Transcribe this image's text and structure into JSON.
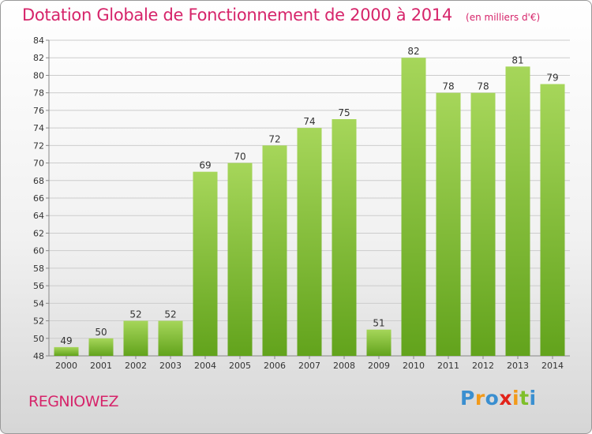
{
  "header": {
    "title": "Dotation Globale de Fonctionnement de 2000 à 2014",
    "subtitle": "(en milliers d'€)"
  },
  "footer": {
    "commune": "REGNIOWEZ",
    "logo_letters": [
      {
        "ch": "P",
        "color": "#3a8fd0"
      },
      {
        "ch": "r",
        "color": "#f29a1a"
      },
      {
        "ch": "o",
        "color": "#3a8fd0"
      },
      {
        "ch": "x",
        "color": "#e2231a"
      },
      {
        "ch": "i",
        "color": "#f29a1a"
      },
      {
        "ch": "t",
        "color": "#7fbf2a"
      },
      {
        "ch": "i",
        "color": "#3a8fd0"
      }
    ]
  },
  "colors": {
    "bar_light": "#a6d65a",
    "bar_dark": "#62a31c",
    "axis": "#888888",
    "grid": "#cccccc",
    "text": "#333333",
    "accent": "#d6246a"
  },
  "chart_data": {
    "type": "bar",
    "title": "Dotation Globale de Fonctionnement de 2000 à 2014",
    "subtitle": "(en milliers d'€)",
    "categories": [
      "2000",
      "2001",
      "2002",
      "2003",
      "2004",
      "2005",
      "2006",
      "2007",
      "2008",
      "2009",
      "2010",
      "2011",
      "2012",
      "2013",
      "2014"
    ],
    "values": [
      49,
      50,
      52,
      52,
      69,
      70,
      72,
      74,
      75,
      51,
      82,
      78,
      78,
      81,
      79
    ],
    "ylim": [
      48,
      84
    ],
    "yticks": [
      48,
      50,
      52,
      54,
      56,
      58,
      60,
      62,
      64,
      66,
      68,
      70,
      72,
      74,
      76,
      78,
      80,
      82,
      84
    ],
    "grid": "horizontal",
    "legend": "none"
  }
}
